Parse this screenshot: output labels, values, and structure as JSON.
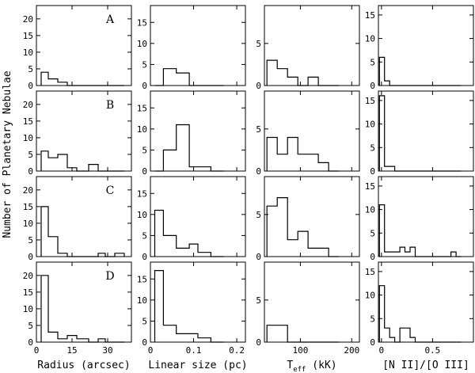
{
  "chart_data": {
    "type": "histogram-grid",
    "ylabel": "Number of Planetary Nebulae",
    "rows": [
      "A",
      "B",
      "C",
      "D"
    ],
    "columns": [
      {
        "key": "radius",
        "xlabel": "Radius (arcsec)",
        "xlim": [
          0,
          40
        ],
        "ylim": [
          0,
          24
        ],
        "x_ticks": [
          0,
          15,
          30
        ],
        "x_tick_labels": [
          "0",
          "15",
          "30"
        ],
        "y_ticks": [
          0,
          5,
          10,
          15,
          20
        ],
        "y_tick_labels": [
          "0",
          "5",
          "10",
          "15",
          "20"
        ],
        "bin_edges": [
          2,
          5,
          9,
          13,
          17,
          22,
          26,
          29,
          33,
          37
        ],
        "counts": {
          "A": [
            4,
            2,
            1,
            0,
            0,
            0,
            0,
            0,
            0
          ],
          "B": [
            6,
            4,
            5,
            1,
            0,
            2,
            0,
            0,
            0
          ],
          "C": [
            15,
            6,
            1,
            0,
            0,
            0,
            1,
            0,
            1
          ],
          "D": [
            20,
            3,
            1,
            2,
            1,
            0,
            1,
            0,
            0
          ]
        }
      },
      {
        "key": "linear_size",
        "xlabel": "Linear size (pc)",
        "xlim": [
          0,
          0.22
        ],
        "ylim": [
          0,
          19
        ],
        "x_ticks": [
          0,
          0.1,
          0.2
        ],
        "x_tick_labels": [
          "0",
          "0.1",
          "0.2"
        ],
        "y_ticks": [
          0,
          5,
          10,
          15
        ],
        "y_tick_labels": [
          "0",
          "5",
          "10",
          "15"
        ],
        "bin_edges": [
          0.01,
          0.03,
          0.06,
          0.09,
          0.11,
          0.14,
          0.17
        ],
        "counts": {
          "A": [
            0,
            4,
            3,
            0,
            0,
            0
          ],
          "B": [
            0,
            5,
            11,
            1,
            1,
            0
          ],
          "C": [
            11,
            5,
            2,
            3,
            1,
            0
          ],
          "D": [
            17,
            4,
            2,
            2,
            1,
            0
          ]
        }
      },
      {
        "key": "teff",
        "xlabel": "T_eff (kK)",
        "xlim": [
          30,
          215
        ],
        "ylim": [
          0,
          9.5
        ],
        "x_ticks": [
          100,
          200
        ],
        "x_tick_labels": [
          "100",
          "200"
        ],
        "y_ticks": [
          0,
          5
        ],
        "y_tick_labels": [
          "0",
          "5"
        ],
        "bin_edges": [
          35,
          55,
          75,
          95,
          115,
          135,
          155,
          175
        ],
        "counts": {
          "A": [
            3,
            2,
            1,
            0,
            1,
            0,
            0
          ],
          "B": [
            4,
            2,
            4,
            2,
            2,
            1,
            0
          ],
          "C": [
            6,
            7,
            2,
            3,
            1,
            1,
            0
          ],
          "D": [
            2,
            2,
            0,
            0,
            0,
            0,
            0
          ]
        }
      },
      {
        "key": "n2_o3",
        "xlabel": "[N II]/[O III]",
        "xlim": [
          -0.03,
          0.9
        ],
        "ylim": [
          0,
          17
        ],
        "x_ticks": [
          0,
          0.5
        ],
        "x_tick_labels": [
          "0",
          "0.5"
        ],
        "y_ticks": [
          0,
          5,
          10,
          15
        ],
        "y_tick_labels": [
          "0",
          "5",
          "10",
          "15"
        ],
        "bin_edges": [
          -0.02,
          0.03,
          0.08,
          0.13,
          0.18,
          0.23,
          0.28,
          0.33,
          0.38,
          0.43,
          0.48,
          0.53,
          0.58,
          0.63,
          0.68,
          0.73,
          0.78
        ],
        "counts": {
          "A": [
            6,
            1,
            0,
            0,
            0,
            0,
            0,
            0,
            0,
            0,
            0,
            0,
            0,
            0,
            0,
            0
          ],
          "B": [
            16,
            1,
            1,
            0,
            0,
            0,
            0,
            0,
            0,
            0,
            0,
            0,
            0,
            0,
            0,
            0
          ],
          "C": [
            11,
            1,
            1,
            1,
            2,
            1,
            2,
            0,
            0,
            0,
            0,
            0,
            0,
            0,
            1,
            0
          ],
          "D": [
            12,
            3,
            1,
            0,
            3,
            3,
            1,
            0,
            0,
            0,
            0,
            0,
            0,
            0,
            0,
            0
          ]
        }
      }
    ]
  }
}
